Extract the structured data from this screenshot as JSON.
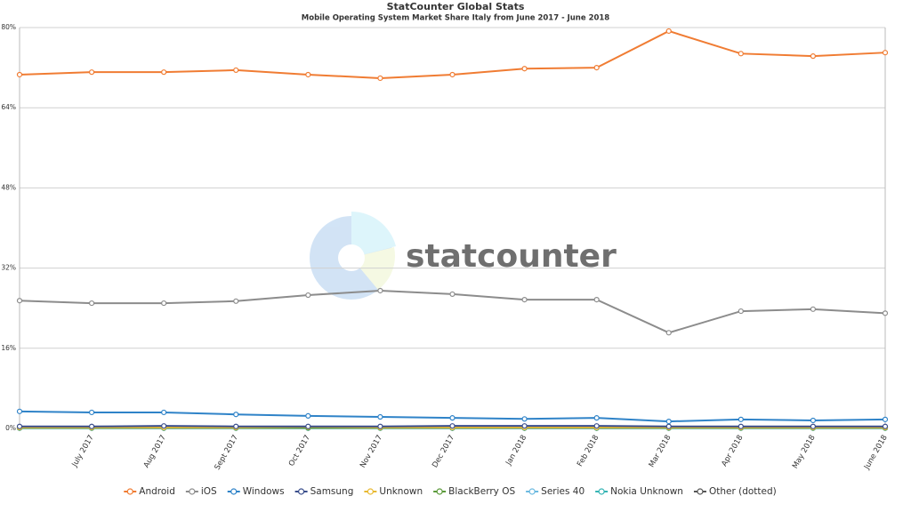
{
  "chart_data": {
    "type": "line",
    "title": "StatCounter Global Stats",
    "subtitle": "Mobile Operating System Market Share Italy from June 2017 - June 2018",
    "watermark": "statcounter",
    "categories": [
      null,
      "July 2017",
      "Aug 2017",
      "Sept 2017",
      "Oct 2017",
      "Nov 2017",
      "Dec 2017",
      "Jan 2018",
      "Feb 2018",
      "Mar 2018",
      "Apr 2018",
      "May 2018",
      "June 2018"
    ],
    "ylim": [
      0,
      80
    ],
    "yticks": [
      {
        "value": 0,
        "label": "0%"
      },
      {
        "value": 16,
        "label": "16%"
      },
      {
        "value": 32,
        "label": "32%"
      },
      {
        "value": 48,
        "label": "48%"
      },
      {
        "value": 64,
        "label": "64%"
      },
      {
        "value": 80,
        "label": "80%"
      }
    ],
    "grid": true,
    "series": [
      {
        "name": "Android",
        "color": "#f07c33",
        "values": [
          70.6,
          71.1,
          71.1,
          71.5,
          70.6,
          69.9,
          70.6,
          71.8,
          72.0,
          79.3,
          74.8,
          74.3,
          75.0
        ]
      },
      {
        "name": "iOS",
        "color": "#8c8c8c",
        "values": [
          25.5,
          25.0,
          25.0,
          25.4,
          26.6,
          27.5,
          26.8,
          25.7,
          25.7,
          19.1,
          23.4,
          23.8,
          23.0
        ]
      },
      {
        "name": "Windows",
        "color": "#2f83c8",
        "values": [
          3.4,
          3.2,
          3.2,
          2.8,
          2.5,
          2.3,
          2.1,
          1.9,
          2.1,
          1.4,
          1.8,
          1.6,
          1.8
        ]
      },
      {
        "name": "Samsung",
        "color": "#3a4e8c",
        "values": [
          0.4,
          0.4,
          0.5,
          0.4,
          0.4,
          0.4,
          0.5,
          0.5,
          0.5,
          0.4,
          0.4,
          0.4,
          0.4
        ]
      },
      {
        "name": "Unknown",
        "color": "#e8b932",
        "values": [
          0.2,
          0.2,
          0.2,
          0.2,
          0.3,
          0.2,
          0.2,
          0.2,
          0.2,
          0.2,
          0.2,
          0.2,
          0.2
        ]
      },
      {
        "name": "BlackBerry OS",
        "color": "#5b9a3a",
        "values": [
          0.1,
          0.1,
          0.1,
          0.1,
          0.1,
          0.1,
          0.1,
          0.1,
          0.1,
          0.1,
          0.1,
          0.1,
          0.1
        ]
      },
      {
        "name": "Series 40",
        "color": "#6bb9e0",
        "values": [
          0.05,
          0.05,
          0.05,
          0.05,
          0.05,
          0.05,
          0.05,
          0.05,
          0.05,
          0.05,
          0.05,
          0.05,
          0.05
        ]
      },
      {
        "name": "Nokia Unknown",
        "color": "#35b4b4",
        "values": [
          0.05,
          0.05,
          0.05,
          0.05,
          0.05,
          0.05,
          0.05,
          0.05,
          0.05,
          0.05,
          0.05,
          0.05,
          0.05
        ]
      },
      {
        "name": "Other (dotted)",
        "color": "#555555",
        "values": [
          0.2,
          0.2,
          0.2,
          0.2,
          0.2,
          0.2,
          0.2,
          0.2,
          0.2,
          0.2,
          0.2,
          0.2,
          0.2
        ]
      }
    ]
  }
}
